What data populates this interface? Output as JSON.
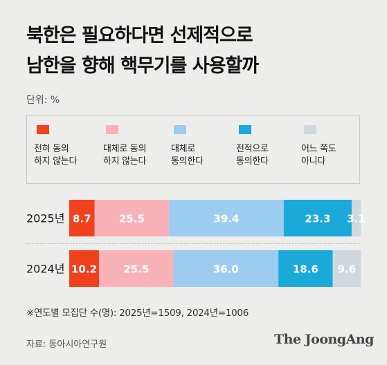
{
  "title": {
    "line1": "북한은 필요하다면 선제적으로",
    "line2": "남한을 향해 핵무기를 사용할까"
  },
  "unit_label": "단위: %",
  "legend": [
    {
      "label": "전혀 동의\n하지 않는다",
      "color": "#f1401c"
    },
    {
      "label": "대체로 동의\n하지 않는다",
      "color": "#f9b3b8"
    },
    {
      "label": "대체로\n동의한다",
      "color": "#9ccdf0"
    },
    {
      "label": "전적으로\n동의한다",
      "color": "#1aa9d8"
    },
    {
      "label": "어느 쪽도\n아니다",
      "color": "#cfd8dd"
    }
  ],
  "chart_data": {
    "type": "bar",
    "orientation": "horizontal",
    "stacked": true,
    "categories": [
      "2025년",
      "2024년"
    ],
    "series": [
      {
        "name": "전혀 동의 하지 않는다",
        "values": [
          8.7,
          10.2
        ],
        "color": "#f1401c"
      },
      {
        "name": "대체로 동의 하지 않는다",
        "values": [
          25.5,
          25.5
        ],
        "color": "#f9b3b8"
      },
      {
        "name": "대체로 동의한다",
        "values": [
          39.4,
          36.0
        ],
        "color": "#9ccdf0"
      },
      {
        "name": "전적으로 동의한다",
        "values": [
          23.3,
          18.6
        ],
        "color": "#1aa9d8"
      },
      {
        "name": "어느 쪽도 아니다",
        "values": [
          3.1,
          9.6
        ],
        "color": "#cfd8dd"
      }
    ],
    "value_labels": [
      [
        "8.7",
        "25.5",
        "39.4",
        "23.3",
        "3.1"
      ],
      [
        "10.2",
        "25.5",
        "36.0",
        "18.6",
        "9.6"
      ]
    ],
    "label_colors": [
      "#ffffff",
      "#ffffff",
      "#ffffff",
      "#ffffff",
      "#ffffff"
    ]
  },
  "note": "※연도별 모집단 수(명): 2025년=1509, 2024년=1006",
  "source": "자료: 동아시아연구원",
  "logo_text": "The JoongAng"
}
